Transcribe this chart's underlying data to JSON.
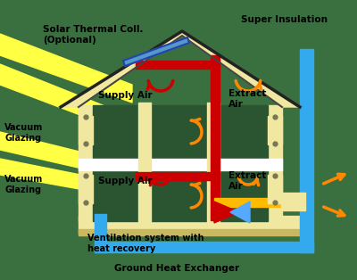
{
  "bg_color": "#3a7040",
  "house_fill": "#f0e8a0",
  "interior_bg": "#2a5530",
  "solar_color": "#5599cc",
  "red": "#cc0000",
  "blue": "#33aaee",
  "yellow": "#ffbb00",
  "orange": "#ff8800",
  "sun_yellow": "#ffff44",
  "labels": {
    "solar": "Solar Thermal Coll.\n(Optional)",
    "super_ins": "Super Insulation",
    "vac_top": "Vacuum\nGlazing",
    "vac_bot": "Vacuum\nGlazing",
    "sup_top": "Supply Air",
    "sup_bot": "Supply Air",
    "ext_top": "Extract\nAir",
    "ext_bot": "Extract\nAir",
    "vent": "Ventilation system with\nheat recovery",
    "ground": "Ground Heat Exchanger"
  }
}
